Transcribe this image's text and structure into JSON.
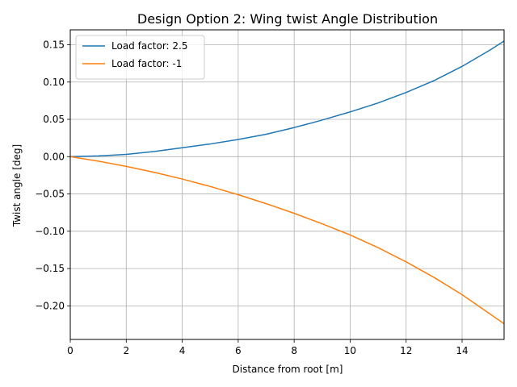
{
  "chart_data": {
    "type": "line",
    "title": "Design Option 2: Wing twist Angle Distribution",
    "xlabel": "Distance from root [m]",
    "ylabel": "Twist angle [deg]",
    "xlim": [
      0,
      15.5
    ],
    "ylim": [
      -0.245,
      0.17
    ],
    "xticks": [
      0,
      2,
      4,
      6,
      8,
      10,
      12,
      14
    ],
    "xtick_labels": [
      "0",
      "2",
      "4",
      "6",
      "8",
      "10",
      "12",
      "14"
    ],
    "yticks": [
      -0.2,
      -0.15,
      -0.1,
      -0.05,
      0.0,
      0.05,
      0.1,
      0.15
    ],
    "ytick_labels": [
      "−0.20",
      "−0.15",
      "−0.10",
      "−0.05",
      "0.00",
      "0.05",
      "0.10",
      "0.15"
    ],
    "grid": true,
    "legend_position": "top-left",
    "series": [
      {
        "name": "Load factor: 2.5",
        "color": "#1f77b4",
        "x": [
          0,
          1,
          2,
          3,
          4,
          5,
          6,
          7,
          8,
          9,
          10,
          11,
          12,
          13,
          14,
          15,
          15.5
        ],
        "y": [
          0,
          0.001,
          0.003,
          0.007,
          0.012,
          0.017,
          0.023,
          0.03,
          0.039,
          0.049,
          0.06,
          0.072,
          0.086,
          0.102,
          0.121,
          0.143,
          0.155
        ]
      },
      {
        "name": "Load factor: -1",
        "color": "#ff7f0e",
        "x": [
          0,
          1,
          2,
          3,
          4,
          5,
          6,
          7,
          8,
          9,
          10,
          11,
          12,
          13,
          14,
          15,
          15.5
        ],
        "y": [
          0,
          -0.006,
          -0.013,
          -0.021,
          -0.03,
          -0.04,
          -0.051,
          -0.063,
          -0.076,
          -0.09,
          -0.105,
          -0.122,
          -0.141,
          -0.162,
          -0.185,
          -0.211,
          -0.224
        ]
      }
    ]
  }
}
